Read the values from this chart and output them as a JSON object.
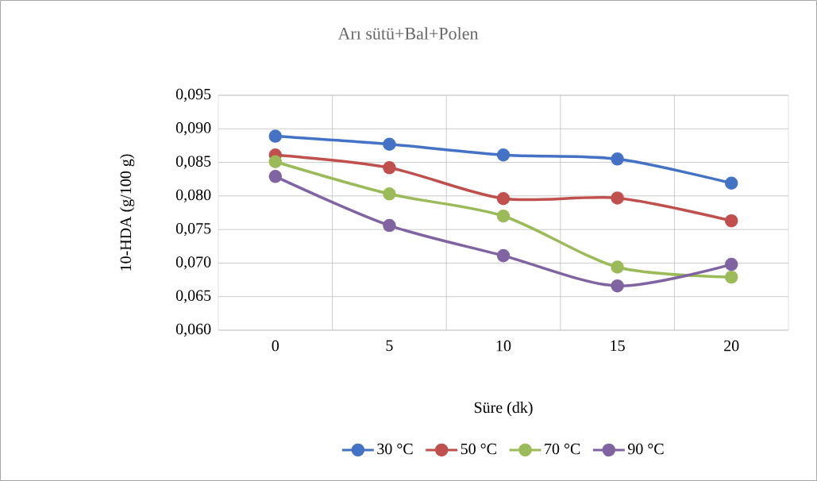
{
  "chart_data": {
    "type": "line",
    "title": "Arı sütü+Bal+Polen",
    "xlabel": "Süre (dk)",
    "ylabel": "10-HDA (g/100 g)",
    "categories": [
      "0",
      "5",
      "10",
      "15",
      "20"
    ],
    "series": [
      {
        "name": "30 °C",
        "color": "#4472c4",
        "values": [
          0.0889,
          0.0877,
          0.0861,
          0.0855,
          0.0819
        ]
      },
      {
        "name": "50 °C",
        "color": "#c0504d",
        "values": [
          0.0861,
          0.0842,
          0.0796,
          0.0797,
          0.0763
        ]
      },
      {
        "name": "70 °C",
        "color": "#9bbb59",
        "values": [
          0.0851,
          0.0803,
          0.077,
          0.0694,
          0.0679
        ]
      },
      {
        "name": "90 °C",
        "color": "#8064a2",
        "values": [
          0.0829,
          0.0756,
          0.0711,
          0.0666,
          0.0698
        ]
      }
    ],
    "ylim": [
      0.06,
      0.095
    ],
    "yticks": [
      {
        "value": 0.06,
        "label": "0,060"
      },
      {
        "value": 0.065,
        "label": "0,065"
      },
      {
        "value": 0.07,
        "label": "0,070"
      },
      {
        "value": 0.075,
        "label": "0,075"
      },
      {
        "value": 0.08,
        "label": "0,080"
      },
      {
        "value": 0.085,
        "label": "0,085"
      },
      {
        "value": 0.09,
        "label": "0,090"
      },
      {
        "value": 0.095,
        "label": "0,095"
      }
    ],
    "grid": true,
    "legend": "bottom",
    "marker": "circle",
    "line_style": "solid"
  }
}
